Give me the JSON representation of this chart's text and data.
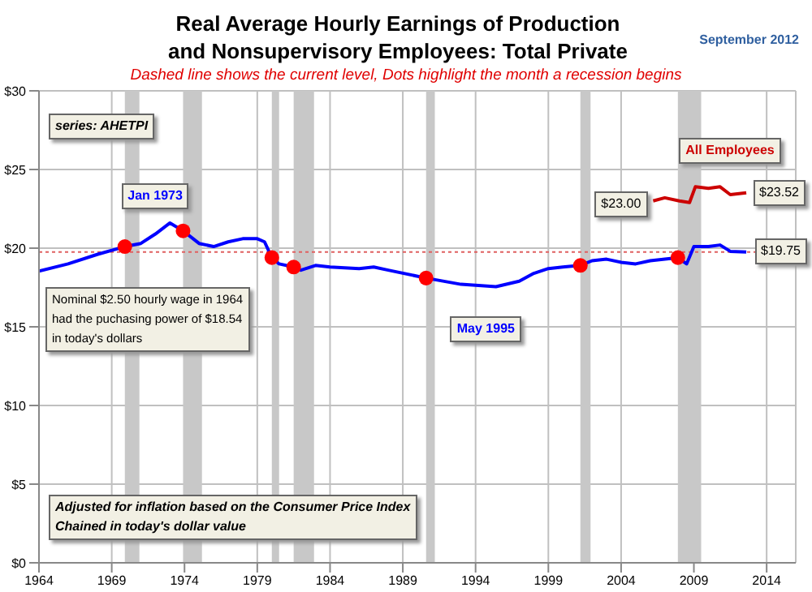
{
  "chart_data": {
    "type": "line",
    "title": "Real Average Hourly Earnings of Production and Nonsupervisory Employees: Total Private",
    "subtitle": "Dashed line shows the current level, Dots highlight the month a recession begins",
    "xlim": [
      1964,
      2016
    ],
    "xticks": [
      1964,
      1969,
      1974,
      1979,
      1984,
      1989,
      1994,
      1999,
      2004,
      2009,
      2014
    ],
    "ylim": [
      0,
      30
    ],
    "yticks": [
      {
        "value": 0,
        "label": "$0"
      },
      {
        "value": 5,
        "label": "$5"
      },
      {
        "value": 10,
        "label": "$10"
      },
      {
        "value": 15,
        "label": "$15"
      },
      {
        "value": 20,
        "label": "$20"
      },
      {
        "value": 25,
        "label": "$25"
      },
      {
        "value": 30,
        "label": "$30"
      }
    ],
    "grid": true,
    "legend": false,
    "series": [
      {
        "color": "#0000ff",
        "x": [
          1964,
          1966,
          1968,
          1969.9,
          1971,
          1972,
          1973,
          1973.9,
          1975,
          1976,
          1977,
          1978,
          1979,
          1979.5,
          1980,
          1980.5,
          1981.5,
          1982,
          1983,
          1984,
          1986,
          1987,
          1988,
          1990.6,
          1993,
          1995.4,
          1997,
          1998,
          1999,
          2000,
          2001.2,
          2002,
          2003,
          2004,
          2005,
          2006,
          2007.9,
          2008.5,
          2009,
          2010,
          2010.8,
          2011.5,
          2012.6
        ],
        "values": [
          18.54,
          19.0,
          19.6,
          20.1,
          20.3,
          20.9,
          21.6,
          21.1,
          20.3,
          20.1,
          20.4,
          20.6,
          20.6,
          20.4,
          19.4,
          19.0,
          18.8,
          18.6,
          18.9,
          18.8,
          18.7,
          18.8,
          18.6,
          18.1,
          17.7,
          17.55,
          17.9,
          18.4,
          18.7,
          18.8,
          18.9,
          19.2,
          19.3,
          19.1,
          19.0,
          19.2,
          19.4,
          19.0,
          20.1,
          20.1,
          20.2,
          19.8,
          19.75
        ]
      },
      {
        "name": "All Employees",
        "color": "#cc0000",
        "x": [
          2006.2,
          2007,
          2008,
          2008.7,
          2009.1,
          2010,
          2010.8,
          2011.5,
          2012.6
        ],
        "values": [
          23.0,
          23.2,
          23.0,
          22.9,
          23.9,
          23.8,
          23.9,
          23.4,
          23.52
        ]
      },
      {
        "type": "scatter",
        "color": "#ff0000",
        "marker": "circle",
        "x": [
          1969.9,
          1973.9,
          1980,
          1981.5,
          1990.6,
          2001.2,
          2007.9
        ],
        "values": [
          20.1,
          21.1,
          19.4,
          18.8,
          18.1,
          18.9,
          19.4
        ]
      }
    ],
    "ref_lines": [
      {
        "axis": "y",
        "value": 19.75,
        "color": "#e06060",
        "line_style": "dotted"
      }
    ],
    "bands": [
      {
        "axis": "x",
        "from": 1969.9,
        "to": 1970.9,
        "color": "#c8c8c8"
      },
      {
        "axis": "x",
        "from": 1973.9,
        "to": 1975.2,
        "color": "#c8c8c8"
      },
      {
        "axis": "x",
        "from": 1980,
        "to": 1980.5,
        "color": "#c8c8c8"
      },
      {
        "axis": "x",
        "from": 1981.5,
        "to": 1982.9,
        "color": "#c8c8c8"
      },
      {
        "axis": "x",
        "from": 1990.6,
        "to": 1991.2,
        "color": "#c8c8c8"
      },
      {
        "axis": "x",
        "from": 2001.2,
        "to": 2001.9,
        "color": "#c8c8c8"
      },
      {
        "axis": "x",
        "from": 2007.9,
        "to": 2009.5,
        "color": "#c8c8c8"
      }
    ],
    "annotations": [
      "September 2012",
      "series: AHETPI",
      "Adjusted for inflation based on the Consumer Price Index\nChained in today's dollar value",
      {
        "text": "Jan 1973",
        "x": 1973,
        "y": 21.6
      },
      {
        "text": "May 1995",
        "x": 1995.4,
        "y": 17.55
      },
      {
        "text": "Nominal $2.50 hourly wage in 1964 had the puchasing power of $18.54 in today's dollars",
        "x": 1964,
        "y": 18.54
      },
      {
        "text": "$19.75",
        "x": 2012.6,
        "y": 19.75
      },
      {
        "text": "$23.00",
        "x": 2006.2,
        "y": 23.0
      },
      {
        "text": "$23.52",
        "x": 2012.6,
        "y": 23.52
      }
    ]
  }
}
